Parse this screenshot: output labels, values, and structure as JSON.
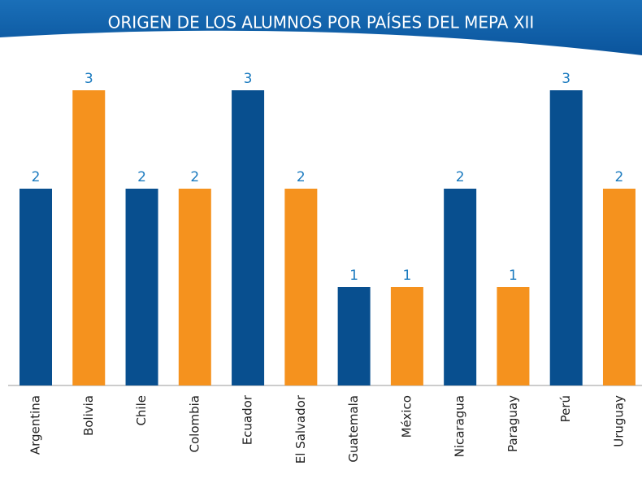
{
  "chart_data": {
    "type": "bar",
    "title": "ORIGEN DE LOS ALUMNOS POR PAÍSES DEL MEPA XII",
    "categories": [
      "Argentina",
      "Bolivia",
      "Chile",
      "Colombia",
      "Ecuador",
      "El Salvador",
      "Guatemala",
      "México",
      "Nicaragua",
      "Paraguay",
      "Perú",
      "Uruguay"
    ],
    "values": [
      2,
      3,
      2,
      2,
      3,
      2,
      1,
      1,
      2,
      1,
      3,
      2
    ],
    "colors": [
      "#084f8f",
      "#f5921e",
      "#084f8f",
      "#f5921e",
      "#084f8f",
      "#f5921e",
      "#084f8f",
      "#f5921e",
      "#084f8f",
      "#f5921e",
      "#084f8f",
      "#f5921e"
    ],
    "ylim": [
      0,
      3
    ]
  }
}
